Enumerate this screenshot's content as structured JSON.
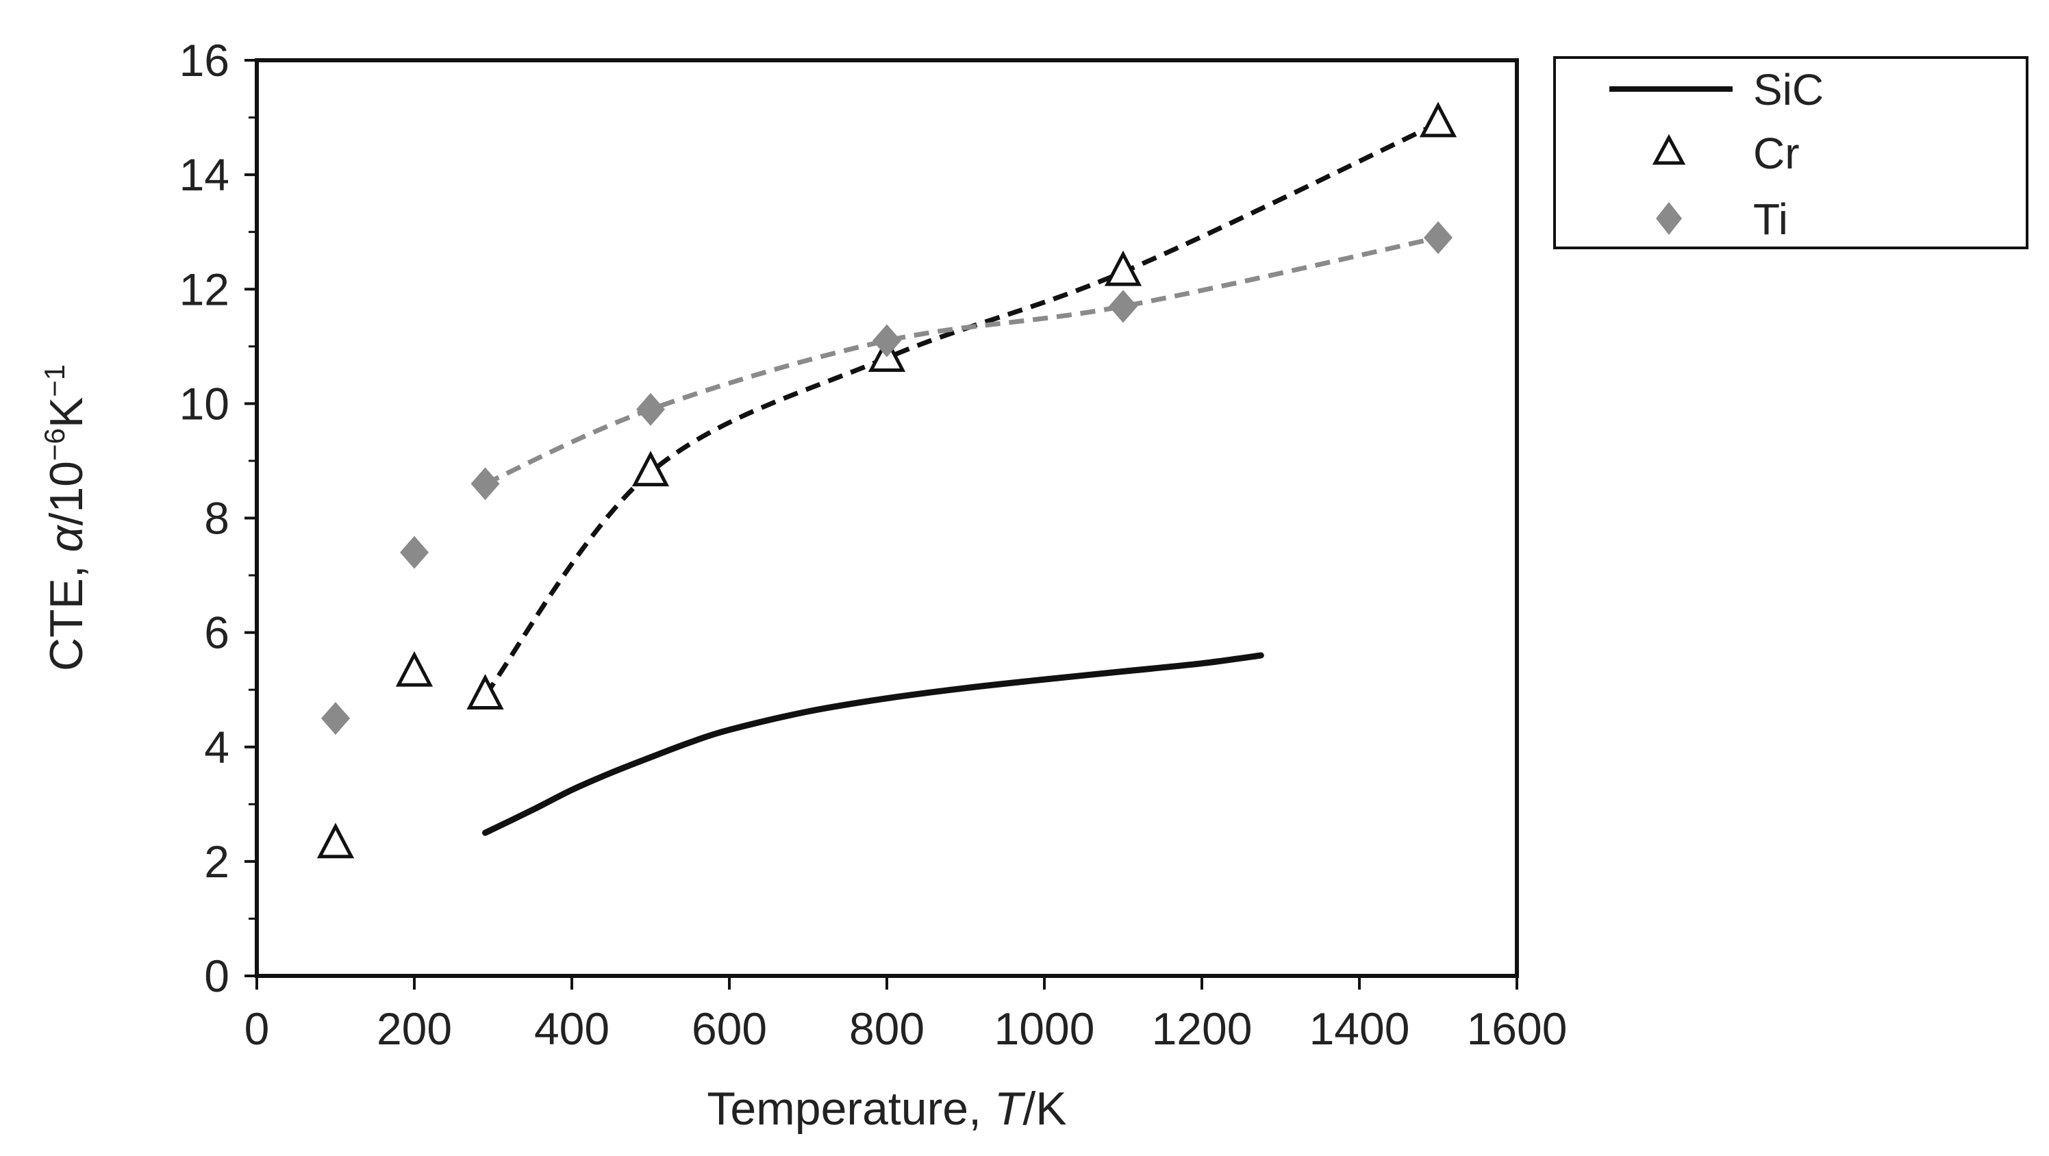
{
  "chart_data": {
    "type": "line",
    "title": "",
    "xlabel": "Temperature, T/K",
    "xlabel_parts": {
      "prefix": "Temperature, ",
      "italic": "T",
      "suffix": "/K"
    },
    "ylabel": "CTE, α/10⁻⁶K⁻¹",
    "ylabel_parts": {
      "prefix": "CTE, ",
      "italic": "α",
      "unit": "/10",
      "sup1": "−6",
      "unit2": "K",
      "sup2": "−1"
    },
    "xlim": [
      0,
      1600
    ],
    "ylim": [
      0,
      16
    ],
    "xticks": [
      0,
      200,
      400,
      600,
      800,
      1000,
      1200,
      1400,
      1600
    ],
    "yticks": [
      0,
      2,
      4,
      6,
      8,
      10,
      12,
      14,
      16
    ],
    "grid": false,
    "legend_position": "outside-top-right",
    "series": [
      {
        "name": "SiC",
        "style": "solid-line",
        "color": "#111111",
        "x": [
          290,
          350,
          400,
          450,
          500,
          550,
          600,
          700,
          800,
          900,
          1000,
          1100,
          1200,
          1275
        ],
        "y": [
          2.5,
          2.9,
          3.25,
          3.55,
          3.82,
          4.08,
          4.3,
          4.62,
          4.85,
          5.03,
          5.18,
          5.32,
          5.46,
          5.6
        ]
      },
      {
        "name": "Cr",
        "style": "open-triangle",
        "color": "#111111",
        "x": [
          100,
          200,
          290,
          500,
          800,
          1100,
          1500
        ],
        "y": [
          2.3,
          5.3,
          4.9,
          8.8,
          10.8,
          12.3,
          14.9
        ],
        "trend": {
          "style": "dashed",
          "color": "#111111",
          "x": [
            290,
            500,
            800,
            1100,
            1500
          ],
          "y": [
            4.9,
            8.8,
            10.8,
            12.3,
            14.9
          ]
        }
      },
      {
        "name": "Ti",
        "style": "filled-diamond",
        "color": "#8a8a8a",
        "x": [
          100,
          200,
          290,
          500,
          800,
          1100,
          1500
        ],
        "y": [
          4.5,
          7.4,
          8.6,
          9.9,
          11.1,
          11.7,
          12.9
        ],
        "trend": {
          "style": "dashed",
          "color": "#8a8a8a",
          "x": [
            290,
            500,
            800,
            1100,
            1500
          ],
          "y": [
            8.6,
            9.9,
            11.1,
            11.7,
            12.9
          ]
        }
      }
    ]
  }
}
